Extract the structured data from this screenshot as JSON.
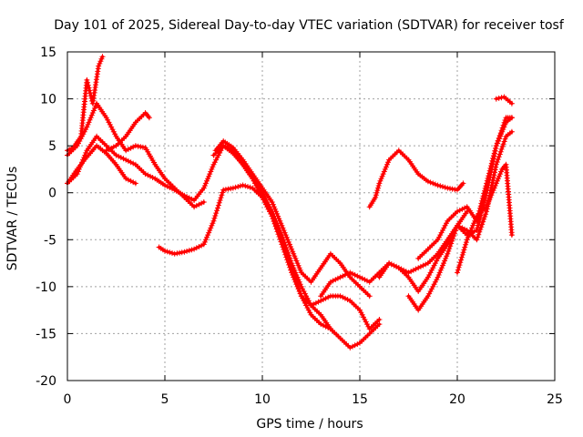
{
  "chart_data": {
    "type": "line",
    "title": "Day 101 of 2025, Sidereal Day-to-day VTEC variation (SDTVAR) for receiver tosf",
    "xlabel": "GPS time / hours",
    "ylabel": "SDTVAR / TECUs",
    "xlim": [
      0,
      25
    ],
    "ylim": [
      -20,
      15
    ],
    "xticks": [
      "0",
      "5",
      "10",
      "15",
      "20",
      "25"
    ],
    "yticks": [
      "15",
      "10",
      "5",
      "0",
      "-5",
      "-10",
      "-15",
      "-20"
    ],
    "grid": true,
    "marker": "plus",
    "color": "#ff0000",
    "series": [
      {
        "name": "s1",
        "x": [
          0.0,
          0.3,
          0.7,
          1.0,
          1.3,
          1.6,
          1.8
        ],
        "y": [
          4.5,
          4.8,
          6.0,
          12.0,
          9.5,
          13.5,
          14.5
        ]
      },
      {
        "name": "s2",
        "x": [
          0.0,
          0.5,
          1.0,
          1.5,
          2.0,
          2.5,
          3.0,
          3.5,
          4.0,
          4.5,
          5.0,
          5.5,
          6.0,
          6.5,
          7.0
        ],
        "y": [
          4.0,
          5.0,
          7.0,
          9.5,
          8.0,
          6.0,
          4.5,
          5.0,
          4.8,
          3.0,
          1.5,
          0.5,
          -0.5,
          -1.5,
          -1.0
        ]
      },
      {
        "name": "s3",
        "x": [
          0.0,
          0.5,
          1.0,
          1.5,
          2.0,
          2.5,
          3.0,
          3.5,
          4.0,
          4.5,
          5.0,
          5.5,
          6.0,
          6.5,
          7.0,
          7.5,
          8.0,
          8.5,
          9.0,
          9.5,
          10.0,
          10.5,
          11.0,
          11.5,
          12.0,
          12.5,
          13.0,
          13.5
        ],
        "y": [
          1.0,
          2.0,
          4.5,
          6.0,
          5.0,
          4.0,
          3.5,
          3.0,
          2.0,
          1.5,
          0.8,
          0.3,
          -0.3,
          -0.8,
          0.5,
          3.0,
          5.0,
          4.5,
          3.0,
          1.5,
          -0.5,
          -2.5,
          -5.0,
          -8.0,
          -11.0,
          -13.0,
          -14.0,
          -14.5
        ]
      },
      {
        "name": "s4",
        "x": [
          0.0,
          0.5,
          1.0,
          1.5,
          2.0,
          2.5,
          3.0,
          3.5
        ],
        "y": [
          1.0,
          2.5,
          3.8,
          5.0,
          4.2,
          3.0,
          1.5,
          1.0
        ]
      },
      {
        "name": "s5",
        "x": [
          2.0,
          2.5,
          3.0,
          3.5,
          4.0,
          4.2
        ],
        "y": [
          4.5,
          5.0,
          6.0,
          7.5,
          8.5,
          8.0
        ]
      },
      {
        "name": "s6",
        "x": [
          4.7,
          5.0,
          5.5,
          6.0,
          6.5,
          7.0,
          7.5,
          8.0,
          8.5,
          9.0,
          9.5,
          10.0,
          10.5,
          11.0,
          11.5,
          12.0,
          12.5,
          13.0,
          13.5,
          14.0,
          14.5,
          15.0,
          15.5,
          16.0
        ],
        "y": [
          -5.8,
          -6.2,
          -6.5,
          -6.3,
          -6.0,
          -5.5,
          -3.0,
          0.3,
          0.5,
          0.8,
          0.5,
          -0.5,
          -2.5,
          -5.5,
          -8.5,
          -11.0,
          -12.0,
          -11.5,
          -11.0,
          -11.0,
          -11.5,
          -12.5,
          -14.5,
          -13.5
        ]
      },
      {
        "name": "s7",
        "x": [
          7.5,
          8.0,
          8.5,
          9.0,
          9.5,
          10.0,
          10.5,
          11.0,
          11.5,
          12.0,
          12.5,
          13.0,
          13.5,
          14.0,
          14.5,
          15.0,
          15.5,
          16.0
        ],
        "y": [
          4.0,
          5.0,
          4.2,
          3.0,
          1.5,
          0.0,
          -2.0,
          -4.5,
          -7.5,
          -10.0,
          -12.0,
          -13.0,
          -14.5,
          -15.5,
          -16.5,
          -16.0,
          -15.0,
          -14.0
        ]
      },
      {
        "name": "s8",
        "x": [
          7.6,
          8.0,
          8.5,
          9.0,
          9.5,
          10.0,
          10.5,
          11.0,
          11.5,
          12.0,
          12.5,
          13.0,
          13.5,
          14.0,
          14.5,
          15.0,
          15.5
        ],
        "y": [
          4.5,
          5.5,
          4.8,
          3.5,
          2.0,
          0.5,
          -1.0,
          -3.5,
          -6.0,
          -8.5,
          -9.5,
          -8.0,
          -6.5,
          -7.5,
          -9.0,
          -10.0,
          -11.0
        ]
      },
      {
        "name": "s9",
        "x": [
          13.0,
          13.5,
          14.0,
          14.5,
          15.0,
          15.5,
          16.0,
          16.5,
          17.0,
          17.5,
          18.0,
          18.5,
          19.0,
          19.5,
          20.0,
          20.5
        ],
        "y": [
          -11.0,
          -9.5,
          -9.0,
          -8.5,
          -9.0,
          -9.5,
          -8.5,
          -7.5,
          -8.0,
          -8.5,
          -8.0,
          -7.5,
          -6.5,
          -5.0,
          -3.5,
          -2.0
        ]
      },
      {
        "name": "s10",
        "x": [
          15.5,
          15.8,
          16.0,
          16.5,
          17.0,
          17.5,
          18.0,
          18.5,
          19.0,
          19.5,
          20.0,
          20.3
        ],
        "y": [
          -1.5,
          -0.5,
          1.0,
          3.5,
          4.5,
          3.5,
          2.0,
          1.2,
          0.8,
          0.5,
          0.3,
          1.0
        ]
      },
      {
        "name": "s11",
        "x": [
          16.0,
          16.5,
          17.0,
          17.5,
          18.0,
          18.5,
          19.0,
          19.5,
          20.0,
          20.5,
          21.0,
          21.5,
          22.0,
          22.5,
          22.8
        ],
        "y": [
          -9.0,
          -7.5,
          -8.0,
          -9.0,
          -10.5,
          -9.0,
          -7.0,
          -5.5,
          -3.5,
          -4.0,
          -5.0,
          -2.0,
          3.0,
          6.0,
          6.5
        ]
      },
      {
        "name": "s12",
        "x": [
          17.5,
          18.0,
          18.5,
          19.0,
          19.5,
          20.0,
          20.5,
          21.0,
          21.5,
          22.0,
          22.5,
          22.8
        ],
        "y": [
          -11.0,
          -12.5,
          -11.0,
          -9.0,
          -6.5,
          -3.5,
          -4.5,
          -4.0,
          0.0,
          5.0,
          7.5,
          8.0
        ]
      },
      {
        "name": "s13",
        "x": [
          18.0,
          18.5,
          19.0,
          19.5,
          20.0,
          20.5,
          21.0,
          21.5,
          22.0,
          22.5,
          22.8
        ],
        "y": [
          -7.0,
          -6.0,
          -5.0,
          -3.0,
          -2.0,
          -1.5,
          -3.0,
          1.0,
          5.0,
          8.0,
          8.0
        ]
      },
      {
        "name": "s14",
        "x": [
          20.0,
          20.5,
          21.0,
          21.5,
          22.0,
          22.3,
          22.5,
          22.8
        ],
        "y": [
          -8.5,
          -5.0,
          -2.5,
          -1.5,
          1.0,
          2.5,
          3.0,
          -4.5
        ]
      },
      {
        "name": "s15",
        "x": [
          22.0,
          22.4,
          22.8
        ],
        "y": [
          10.0,
          10.2,
          9.5
        ]
      }
    ]
  }
}
